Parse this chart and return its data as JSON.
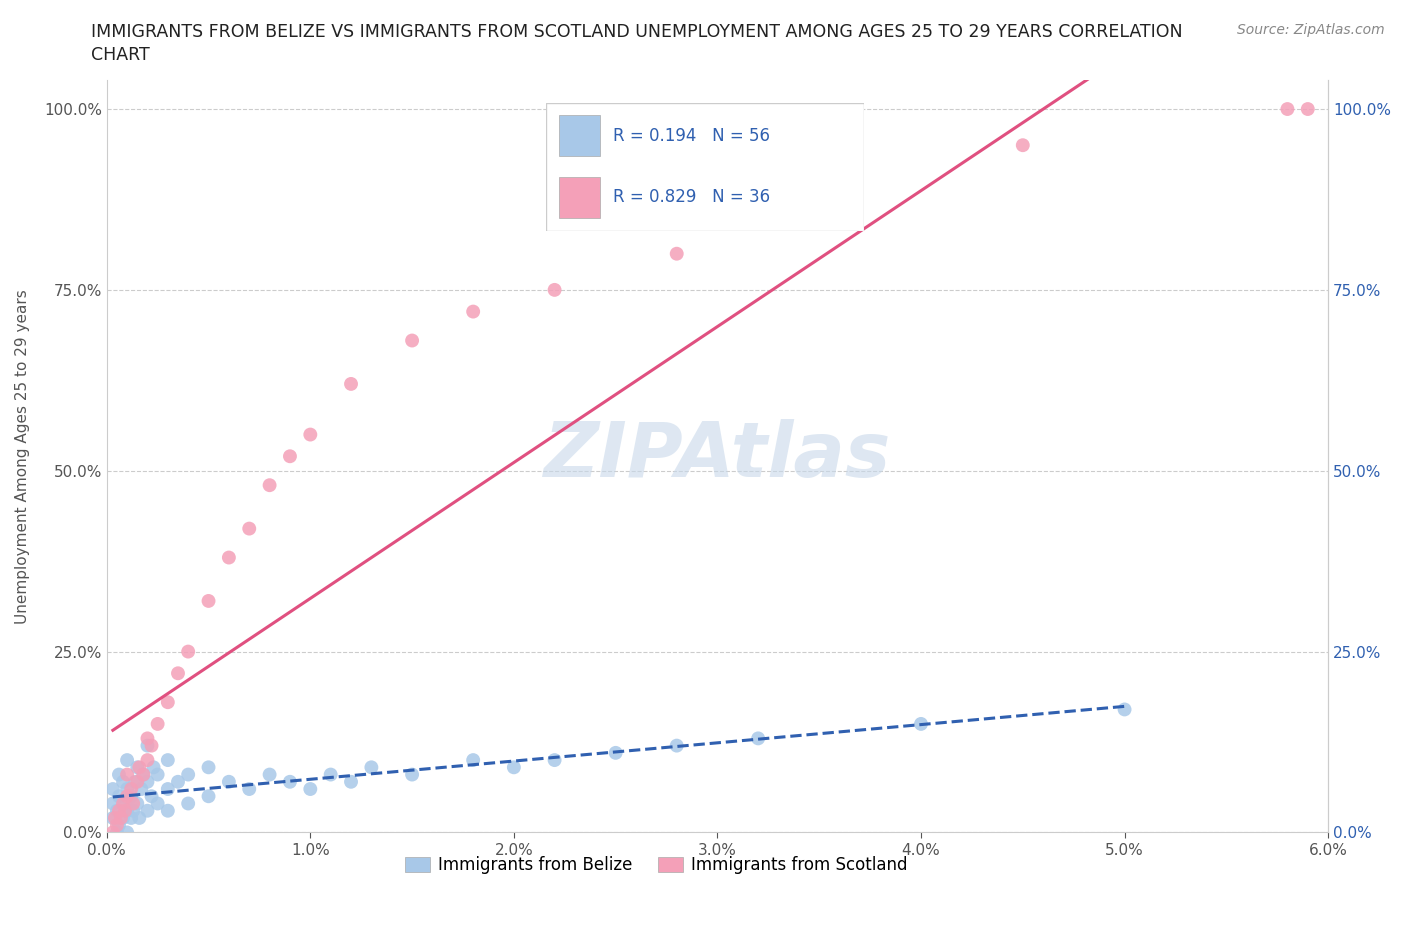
{
  "title_line1": "IMMIGRANTS FROM BELIZE VS IMMIGRANTS FROM SCOTLAND UNEMPLOYMENT AMONG AGES 25 TO 29 YEARS CORRELATION",
  "title_line2": "CHART",
  "source": "Source: ZipAtlas.com",
  "ylabel": "Unemployment Among Ages 25 to 29 years",
  "xlim": [
    0.0,
    0.06
  ],
  "ylim": [
    0.0,
    1.04
  ],
  "xticks": [
    0.0,
    0.01,
    0.02,
    0.03,
    0.04,
    0.05,
    0.06
  ],
  "xtick_labels": [
    "0.0%",
    "1.0%",
    "2.0%",
    "3.0%",
    "4.0%",
    "5.0%",
    "6.0%"
  ],
  "yticks": [
    0.0,
    0.25,
    0.5,
    0.75,
    1.0
  ],
  "ytick_labels_left": [
    "0.0%",
    "25.0%",
    "50.0%",
    "75.0%",
    "100.0%"
  ],
  "ytick_labels_right": [
    "0.0%",
    "25.0%",
    "50.0%",
    "75.0%",
    "100.0%"
  ],
  "belize_color": "#a8c8e8",
  "scotland_color": "#f4a0b8",
  "belize_line_color": "#3060b0",
  "scotland_line_color": "#e05080",
  "right_axis_color": "#3060b0",
  "belize_R": 0.194,
  "belize_N": 56,
  "scotland_R": 0.829,
  "scotland_N": 36,
  "watermark": "ZIPAtlas",
  "watermark_color": "#c8d8ea",
  "legend_belize": "Immigrants from Belize",
  "legend_scotland": "Immigrants from Scotland",
  "belize_x": [
    0.0003,
    0.0003,
    0.0003,
    0.0005,
    0.0005,
    0.0006,
    0.0006,
    0.0006,
    0.0008,
    0.0008,
    0.0009,
    0.001,
    0.001,
    0.001,
    0.001,
    0.0012,
    0.0012,
    0.0013,
    0.0014,
    0.0015,
    0.0015,
    0.0016,
    0.0017,
    0.0018,
    0.002,
    0.002,
    0.002,
    0.0022,
    0.0023,
    0.0025,
    0.0025,
    0.003,
    0.003,
    0.003,
    0.0035,
    0.004,
    0.004,
    0.005,
    0.005,
    0.006,
    0.007,
    0.008,
    0.009,
    0.01,
    0.011,
    0.012,
    0.013,
    0.015,
    0.018,
    0.02,
    0.022,
    0.025,
    0.028,
    0.032,
    0.04,
    0.05
  ],
  "belize_y": [
    0.02,
    0.04,
    0.06,
    0.0,
    0.03,
    0.01,
    0.05,
    0.08,
    0.02,
    0.07,
    0.04,
    0.0,
    0.03,
    0.06,
    0.1,
    0.02,
    0.05,
    0.03,
    0.07,
    0.04,
    0.09,
    0.02,
    0.06,
    0.08,
    0.03,
    0.07,
    0.12,
    0.05,
    0.09,
    0.04,
    0.08,
    0.03,
    0.06,
    0.1,
    0.07,
    0.04,
    0.08,
    0.05,
    0.09,
    0.07,
    0.06,
    0.08,
    0.07,
    0.06,
    0.08,
    0.07,
    0.09,
    0.08,
    0.1,
    0.09,
    0.1,
    0.11,
    0.12,
    0.13,
    0.15,
    0.17
  ],
  "scotland_x": [
    0.0003,
    0.0004,
    0.0005,
    0.0006,
    0.0007,
    0.0008,
    0.0009,
    0.001,
    0.001,
    0.0012,
    0.0013,
    0.0015,
    0.0016,
    0.0018,
    0.002,
    0.002,
    0.0022,
    0.0025,
    0.003,
    0.0035,
    0.004,
    0.005,
    0.006,
    0.007,
    0.008,
    0.009,
    0.01,
    0.012,
    0.015,
    0.018,
    0.022,
    0.028,
    0.035,
    0.045,
    0.058,
    0.059
  ],
  "scotland_y": [
    0.0,
    0.02,
    0.01,
    0.03,
    0.02,
    0.04,
    0.03,
    0.05,
    0.08,
    0.06,
    0.04,
    0.07,
    0.09,
    0.08,
    0.1,
    0.13,
    0.12,
    0.15,
    0.18,
    0.22,
    0.25,
    0.32,
    0.38,
    0.42,
    0.48,
    0.52,
    0.55,
    0.62,
    0.68,
    0.72,
    0.75,
    0.8,
    0.87,
    0.95,
    1.0,
    1.0
  ]
}
